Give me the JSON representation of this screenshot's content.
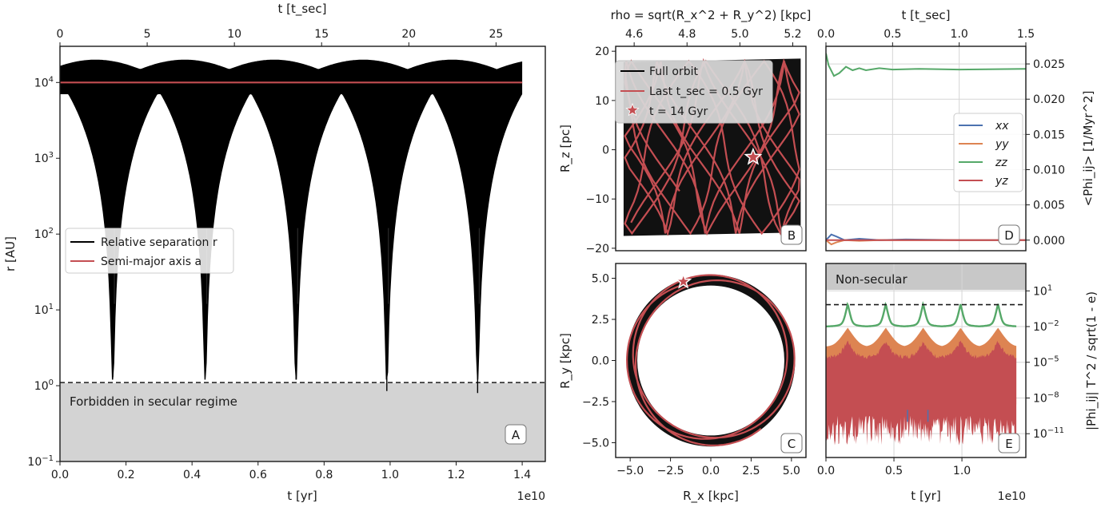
{
  "figure": {
    "panels": {
      "A": "A",
      "B": "B",
      "C": "C",
      "D": "D",
      "E": "E"
    },
    "exp_label": "1e10"
  },
  "chart_data": [
    {
      "id": "A",
      "type": "line",
      "xlabel": "t [yr]",
      "top_xlabel": "t [t_sec]",
      "ylabel": "r [AU]",
      "xscale": "linear",
      "yscale": "log",
      "xlim": [
        0,
        14700000000.0
      ],
      "ylim": [
        0.1,
        30000
      ],
      "x_ticks": [
        "0.0",
        "0.2",
        "0.4",
        "0.6",
        "0.8",
        "1.0",
        "1.2",
        "1.4"
      ],
      "top_ticks": [
        "0",
        "5",
        "10",
        "15",
        "20",
        "25"
      ],
      "y_ticks": [
        "10^-1",
        "10^0",
        "10^1",
        "10^2",
        "10^3",
        "10^4"
      ],
      "series": [
        {
          "name": "Relative separation r",
          "color": "#000000",
          "envelope_max": 20000,
          "envelope_min_between": 7000,
          "dip_times": [
            1600000000.0,
            4400000000.0,
            7150000000.0,
            9900000000.0,
            12650000000.0
          ],
          "dip_minima": [
            1.3,
            1.6,
            1.2,
            0.85,
            0.8
          ],
          "t_end": 14000000000.0
        },
        {
          "name": "Semi-major axis a",
          "color": "#c44e52",
          "value": 10000
        }
      ],
      "threshold": {
        "value": 1.1,
        "style": "dashed"
      },
      "shaded_region_label": "Forbidden in secular regime",
      "legend": "center-left",
      "grid": false
    },
    {
      "id": "B",
      "type": "line",
      "xlabel": "",
      "top_xlabel": "rho = sqrt(R_x^2 + R_y^2) [kpc]",
      "ylabel": "R_z [pc]",
      "xlim": [
        4.53,
        5.25
      ],
      "ylim": [
        -20.5,
        21
      ],
      "top_ticks": [
        "4.6",
        "4.8",
        "5.0",
        "5.2"
      ],
      "y_ticks": [
        "−20",
        "−10",
        "0",
        "10",
        "20"
      ],
      "series": [
        {
          "name": "Full orbit",
          "color": "#000000",
          "rho_range": [
            4.56,
            5.23
          ],
          "z_range": [
            -17.5,
            18.5
          ]
        },
        {
          "name": "Last t_sec = 0.5 Gyr",
          "color": "#c44e52"
        },
        {
          "name": "t = 14 Gyr",
          "marker": "star",
          "color": "#c44e52",
          "rho": 5.05,
          "z": -1.5
        }
      ],
      "legend": "top-left",
      "grid": false
    },
    {
      "id": "C",
      "type": "line",
      "xlabel": "R_x [kpc]",
      "ylabel": "R_y [kpc]",
      "xlim": [
        -5.9,
        5.9
      ],
      "ylim": [
        -5.9,
        5.9
      ],
      "x_ticks": [
        "−5.0",
        "−2.5",
        "0.0",
        "2.5",
        "5.0"
      ],
      "y_ticks": [
        "−5.0",
        "−2.5",
        "0.0",
        "2.5",
        "5.0"
      ],
      "series": [
        {
          "name": "Full orbit",
          "color": "#000000",
          "r_min": 4.56,
          "r_max": 5.23
        },
        {
          "name": "Last t_sec = 0.5 Gyr",
          "color": "#c44e52"
        },
        {
          "name": "t = 14 Gyr",
          "marker": "star",
          "x": -1.7,
          "y": 4.8
        }
      ],
      "grid": false
    },
    {
      "id": "D",
      "type": "line",
      "xlabel": "",
      "top_xlabel": "t [t_sec]",
      "ylabel": "<Phi_ij> [1/Myr^2]",
      "xlim": [
        0,
        1.5
      ],
      "ylim": [
        -0.0015,
        0.0275
      ],
      "top_ticks": [
        "0.0",
        "0.5",
        "1.0",
        "1.5"
      ],
      "y_ticks": [
        "0.000",
        "0.005",
        "0.010",
        "0.015",
        "0.020",
        "0.025"
      ],
      "series": [
        {
          "name": "xx",
          "color": "#4c72b0",
          "x": [
            0,
            0.04,
            0.08,
            0.14,
            0.25,
            0.4,
            0.6,
            1.0,
            1.5
          ],
          "y": [
            0.0,
            0.0008,
            0.0005,
            0.0,
            0.0002,
            0.0,
            0.0001,
            0.0,
            0.0
          ]
        },
        {
          "name": "yy",
          "color": "#dd8452",
          "x": [
            0,
            0.04,
            0.08,
            0.14,
            0.25,
            0.4,
            0.6,
            1.0,
            1.5
          ],
          "y": [
            0.0,
            -0.0006,
            -0.0003,
            0.0,
            -0.0001,
            0.0,
            0.0,
            0.0,
            0.0
          ]
        },
        {
          "name": "zz",
          "color": "#55a868",
          "x": [
            0,
            0.02,
            0.06,
            0.1,
            0.15,
            0.2,
            0.25,
            0.3,
            0.4,
            0.5,
            0.7,
            1.0,
            1.5
          ],
          "y": [
            0.0265,
            0.0248,
            0.0233,
            0.0237,
            0.0246,
            0.0241,
            0.0244,
            0.0241,
            0.0244,
            0.0242,
            0.0243,
            0.0242,
            0.0243
          ]
        },
        {
          "name": "yz",
          "color": "#c44e52",
          "x": [
            0,
            1.5
          ],
          "y": [
            0.0,
            0.0
          ]
        }
      ],
      "legend": "center-right",
      "grid": true
    },
    {
      "id": "E",
      "type": "line",
      "xlabel": "t [yr]",
      "ylabel": "|Phi_ij| T^2 / sqrt(1 - e)",
      "xscale": "linear",
      "yscale": "log",
      "xlim": [
        0,
        14700000000.0
      ],
      "ylim": [
        1e-13,
        2000
      ],
      "x_ticks": [
        "0.0",
        "0.5",
        "1.0"
      ],
      "y_ticks": [
        "10^1",
        "10^-2",
        "10^-5",
        "10^-8",
        "10^-11"
      ],
      "series": [
        {
          "name": "zz",
          "color": "#55a868",
          "base": 0.01,
          "peaks": 1.0
        },
        {
          "name": "yy",
          "color": "#dd8452",
          "base": 0.0001
        },
        {
          "name": "yz",
          "color": "#c44e52",
          "base": 1e-05
        },
        {
          "name": "xx",
          "color": "#4c72b0"
        }
      ],
      "peak_times": [
        1600000000.0,
        4400000000.0,
        7150000000.0,
        9900000000.0,
        12650000000.0
      ],
      "threshold": {
        "value": 0.7,
        "style": "dashed"
      },
      "shaded_region_label": "Non-secular",
      "grid": true
    }
  ]
}
